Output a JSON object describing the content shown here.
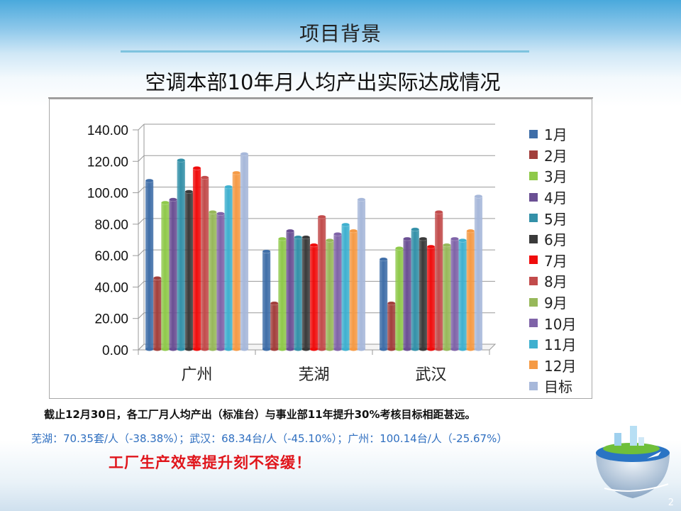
{
  "slide": {
    "title": "项目背景",
    "chart_heading": "空调本部10年月人均产出实际达成情况",
    "page_number": "2"
  },
  "notes": {
    "summary": "截止12月30日，各工厂月人均产出（标准台）与事业部11年提升30%考核目标相距甚远。",
    "stats": "芜湖：70.35套/人（-38.38%）；武汉：68.34台/人（-45.10%）；广州：100.14台/人（-25.67%）",
    "callout": "工厂生产效率提升刻不容缓！"
  },
  "colors": {
    "accent_rule": "#7ec3de",
    "stats_text": "#2f6fc0",
    "callout_text": "#e0151b"
  },
  "chart_data": {
    "type": "bar",
    "title": "空调本部10年月人均产出实际达成情况",
    "xlabel": "",
    "ylabel": "",
    "ylim": [
      0,
      140
    ],
    "yticks": [
      "0.00",
      "20.00",
      "40.00",
      "60.00",
      "80.00",
      "100.00",
      "120.00",
      "140.00"
    ],
    "grid": true,
    "style": "3d-cylinder",
    "legend_position": "right",
    "categories": [
      "广州",
      "芜湖",
      "武汉"
    ],
    "series": [
      {
        "name": "1月",
        "color": "#3f6ea8",
        "values": [
          109,
          64,
          59
        ]
      },
      {
        "name": "2月",
        "color": "#a23f3c",
        "values": [
          47,
          31,
          31
        ]
      },
      {
        "name": "3月",
        "color": "#8fc94a",
        "values": [
          95,
          72,
          66
        ]
      },
      {
        "name": "4月",
        "color": "#6a4f93",
        "values": [
          97,
          77,
          72
        ]
      },
      {
        "name": "5月",
        "color": "#3390a8",
        "values": [
          122,
          73,
          78
        ]
      },
      {
        "name": "6月",
        "color": "#3a3a3a",
        "values": [
          102,
          73,
          72
        ]
      },
      {
        "name": "7月",
        "color": "#f00c0c",
        "values": [
          117,
          68,
          67
        ]
      },
      {
        "name": "8月",
        "color": "#c24b4b",
        "values": [
          111,
          86,
          89
        ]
      },
      {
        "name": "9月",
        "color": "#97b85a",
        "values": [
          89,
          71,
          68
        ]
      },
      {
        "name": "10月",
        "color": "#7f63a8",
        "values": [
          88,
          75,
          72
        ]
      },
      {
        "name": "11月",
        "color": "#3fb0cf",
        "values": [
          105,
          81,
          71
        ]
      },
      {
        "name": "12月",
        "color": "#f59a45",
        "values": [
          114,
          77,
          77
        ]
      },
      {
        "name": "目标",
        "color": "#a7b8da",
        "values": [
          126,
          97,
          99
        ]
      }
    ]
  }
}
